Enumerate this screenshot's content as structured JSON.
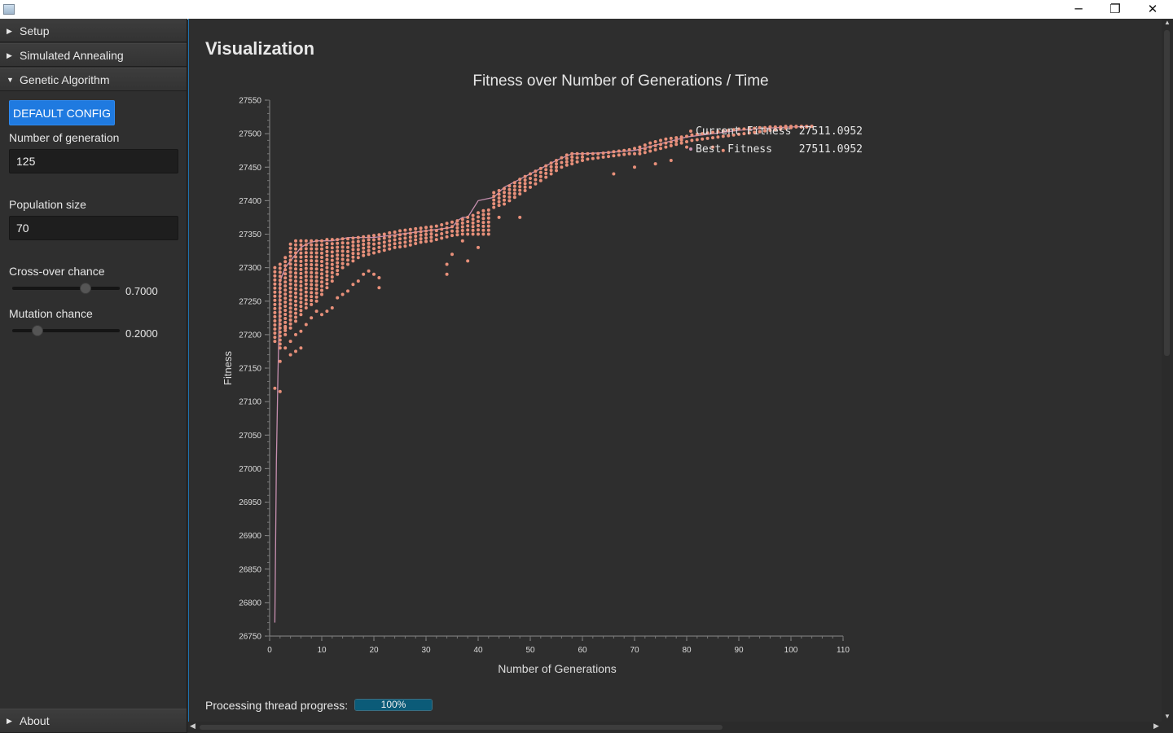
{
  "window": {
    "title": "",
    "controls": {
      "minimize": "─",
      "restore": "❐",
      "close": "✕"
    }
  },
  "sidebar": {
    "sections": [
      {
        "label": "Setup",
        "expanded": false,
        "icon": "triangle-right-icon"
      },
      {
        "label": "Simulated Annealing",
        "expanded": false,
        "icon": "triangle-right-icon"
      },
      {
        "label": "Genetic Algorithm",
        "expanded": true,
        "icon": "triangle-down-icon"
      }
    ],
    "about": {
      "label": "About",
      "expanded": false,
      "icon": "triangle-right-icon"
    },
    "genetic": {
      "default_config_label": "DEFAULT CONFIG",
      "generations_label": "Number of generation",
      "generations_value": "125",
      "population_label": "Population size",
      "population_value": "70",
      "crossover_label": "Cross-over chance",
      "crossover_value": "0.7000",
      "crossover_fraction": 0.7,
      "mutation_label": "Mutation chance",
      "mutation_value": "0.2000",
      "mutation_fraction": 0.2
    }
  },
  "main": {
    "title": "Visualization",
    "progress_label": "Processing thread progress:",
    "progress_value": "100%",
    "progress_fraction": 1.0
  },
  "colors": {
    "accent": "#1f7ae0",
    "series_current": "#e8907a",
    "series_best": "#c78fb0",
    "background": "#2e2e2e"
  },
  "chart_data": {
    "type": "scatter",
    "title": "Fitness over Number of Generations / Time",
    "xlabel": "Number of Generations",
    "ylabel": "Fitness",
    "xlim": [
      0,
      110
    ],
    "ylim": [
      26750,
      27550
    ],
    "x_ticks": [
      0,
      10,
      20,
      30,
      40,
      50,
      60,
      70,
      80,
      90,
      100,
      110
    ],
    "y_ticks": [
      26750,
      26800,
      26850,
      26900,
      26950,
      27000,
      27050,
      27100,
      27150,
      27200,
      27250,
      27300,
      27350,
      27400,
      27450,
      27500,
      27550
    ],
    "legend_position": "top-right",
    "series": [
      {
        "name": "Current Fitness",
        "legend_value": "27511.0952",
        "kind": "scatter",
        "bands": [
          {
            "x": 1,
            "min": 27190,
            "max": 27300
          },
          {
            "x": 2,
            "min": 27180,
            "max": 27305
          },
          {
            "x": 3,
            "min": 27200,
            "max": 27315
          },
          {
            "x": 4,
            "min": 27210,
            "max": 27335
          },
          {
            "x": 5,
            "min": 27220,
            "max": 27340
          },
          {
            "x": 6,
            "min": 27230,
            "max": 27340
          },
          {
            "x": 7,
            "min": 27240,
            "max": 27340
          },
          {
            "x": 8,
            "min": 27245,
            "max": 27340
          },
          {
            "x": 9,
            "min": 27250,
            "max": 27340
          },
          {
            "x": 10,
            "min": 27260,
            "max": 27340
          },
          {
            "x": 11,
            "min": 27270,
            "max": 27342
          },
          {
            "x": 12,
            "min": 27280,
            "max": 27342
          },
          {
            "x": 13,
            "min": 27290,
            "max": 27342
          },
          {
            "x": 14,
            "min": 27300,
            "max": 27343
          },
          {
            "x": 15,
            "min": 27305,
            "max": 27343
          },
          {
            "x": 16,
            "min": 27310,
            "max": 27344
          },
          {
            "x": 17,
            "min": 27315,
            "max": 27345
          },
          {
            "x": 18,
            "min": 27318,
            "max": 27346
          },
          {
            "x": 19,
            "min": 27320,
            "max": 27347
          },
          {
            "x": 20,
            "min": 27322,
            "max": 27348
          },
          {
            "x": 21,
            "min": 27324,
            "max": 27349
          },
          {
            "x": 22,
            "min": 27326,
            "max": 27350
          },
          {
            "x": 23,
            "min": 27328,
            "max": 27352
          },
          {
            "x": 24,
            "min": 27330,
            "max": 27353
          },
          {
            "x": 25,
            "min": 27331,
            "max": 27355
          },
          {
            "x": 26,
            "min": 27332,
            "max": 27356
          },
          {
            "x": 27,
            "min": 27334,
            "max": 27357
          },
          {
            "x": 28,
            "min": 27336,
            "max": 27358
          },
          {
            "x": 29,
            "min": 27338,
            "max": 27359
          },
          {
            "x": 30,
            "min": 27339,
            "max": 27360
          },
          {
            "x": 31,
            "min": 27340,
            "max": 27361
          },
          {
            "x": 32,
            "min": 27342,
            "max": 27362
          },
          {
            "x": 33,
            "min": 27344,
            "max": 27364
          },
          {
            "x": 34,
            "min": 27346,
            "max": 27366
          },
          {
            "x": 35,
            "min": 27348,
            "max": 27368
          },
          {
            "x": 36,
            "min": 27349,
            "max": 27370
          },
          {
            "x": 37,
            "min": 27350,
            "max": 27372
          },
          {
            "x": 38,
            "min": 27350,
            "max": 27375
          },
          {
            "x": 39,
            "min": 27350,
            "max": 27378
          },
          {
            "x": 40,
            "min": 27350,
            "max": 27382
          },
          {
            "x": 41,
            "min": 27350,
            "max": 27385
          },
          {
            "x": 42,
            "min": 27350,
            "max": 27386
          },
          {
            "x": 43,
            "min": 27390,
            "max": 27412
          },
          {
            "x": 44,
            "min": 27393,
            "max": 27415
          },
          {
            "x": 45,
            "min": 27395,
            "max": 27418
          },
          {
            "x": 46,
            "min": 27400,
            "max": 27422
          },
          {
            "x": 47,
            "min": 27405,
            "max": 27427
          },
          {
            "x": 48,
            "min": 27410,
            "max": 27432
          },
          {
            "x": 49,
            "min": 27415,
            "max": 27436
          },
          {
            "x": 50,
            "min": 27420,
            "max": 27440
          },
          {
            "x": 51,
            "min": 27425,
            "max": 27444
          },
          {
            "x": 52,
            "min": 27430,
            "max": 27448
          },
          {
            "x": 53,
            "min": 27435,
            "max": 27452
          },
          {
            "x": 54,
            "min": 27440,
            "max": 27456
          },
          {
            "x": 55,
            "min": 27445,
            "max": 27460
          },
          {
            "x": 56,
            "min": 27450,
            "max": 27464
          },
          {
            "x": 57,
            "min": 27453,
            "max": 27468
          },
          {
            "x": 58,
            "min": 27455,
            "max": 27470
          },
          {
            "x": 59,
            "min": 27458,
            "max": 27470
          },
          {
            "x": 60,
            "min": 27460,
            "max": 27470
          },
          {
            "x": 61,
            "min": 27462,
            "max": 27470
          },
          {
            "x": 62,
            "min": 27463,
            "max": 27470
          },
          {
            "x": 63,
            "min": 27464,
            "max": 27470
          },
          {
            "x": 64,
            "min": 27465,
            "max": 27471
          },
          {
            "x": 65,
            "min": 27466,
            "max": 27472
          },
          {
            "x": 66,
            "min": 27467,
            "max": 27473
          },
          {
            "x": 67,
            "min": 27468,
            "max": 27474
          },
          {
            "x": 68,
            "min": 27469,
            "max": 27475
          },
          {
            "x": 69,
            "min": 27470,
            "max": 27476
          },
          {
            "x": 70,
            "min": 27470,
            "max": 27478
          },
          {
            "x": 71,
            "min": 27470,
            "max": 27480
          },
          {
            "x": 72,
            "min": 27472,
            "max": 27483
          },
          {
            "x": 73,
            "min": 27474,
            "max": 27486
          },
          {
            "x": 74,
            "min": 27476,
            "max": 27488
          },
          {
            "x": 75,
            "min": 27478,
            "max": 27490
          },
          {
            "x": 76,
            "min": 27480,
            "max": 27492
          },
          {
            "x": 77,
            "min": 27482,
            "max": 27493
          },
          {
            "x": 78,
            "min": 27484,
            "max": 27494
          },
          {
            "x": 79,
            "min": 27486,
            "max": 27495
          },
          {
            "x": 80,
            "min": 27488,
            "max": 27496
          },
          {
            "x": 81,
            "min": 27490,
            "max": 27498
          },
          {
            "x": 82,
            "min": 27491,
            "max": 27499
          },
          {
            "x": 83,
            "min": 27492,
            "max": 27500
          },
          {
            "x": 84,
            "min": 27493,
            "max": 27501
          },
          {
            "x": 85,
            "min": 27494,
            "max": 27502
          },
          {
            "x": 86,
            "min": 27495,
            "max": 27503
          },
          {
            "x": 87,
            "min": 27496,
            "max": 27504
          },
          {
            "x": 88,
            "min": 27497,
            "max": 27505
          },
          {
            "x": 89,
            "min": 27498,
            "max": 27506
          },
          {
            "x": 90,
            "min": 27499,
            "max": 27507
          },
          {
            "x": 91,
            "min": 27500,
            "max": 27507
          },
          {
            "x": 92,
            "min": 27501,
            "max": 27508
          },
          {
            "x": 93,
            "min": 27502,
            "max": 27508
          },
          {
            "x": 94,
            "min": 27503,
            "max": 27509
          },
          {
            "x": 95,
            "min": 27504,
            "max": 27509
          },
          {
            "x": 96,
            "min": 27505,
            "max": 27510
          },
          {
            "x": 97,
            "min": 27506,
            "max": 27510
          },
          {
            "x": 98,
            "min": 27507,
            "max": 27510
          },
          {
            "x": 99,
            "min": 27508,
            "max": 27511
          },
          {
            "x": 100,
            "min": 27509,
            "max": 27511
          },
          {
            "x": 101,
            "min": 27510,
            "max": 27511
          },
          {
            "x": 102,
            "min": 27510,
            "max": 27511
          },
          {
            "x": 103,
            "min": 27510,
            "max": 27511
          },
          {
            "x": 104,
            "min": 27511,
            "max": 27511
          }
        ],
        "outliers": [
          [
            1,
            27120
          ],
          [
            2,
            27115
          ],
          [
            2,
            27160
          ],
          [
            3,
            27180
          ],
          [
            4,
            27170
          ],
          [
            4,
            27190
          ],
          [
            5,
            27175
          ],
          [
            6,
            27180
          ],
          [
            3,
            27210
          ],
          [
            5,
            27200
          ],
          [
            6,
            27205
          ],
          [
            7,
            27215
          ],
          [
            8,
            27225
          ],
          [
            9,
            27235
          ],
          [
            10,
            27230
          ],
          [
            11,
            27235
          ],
          [
            12,
            27240
          ],
          [
            13,
            27255
          ],
          [
            14,
            27260
          ],
          [
            15,
            27265
          ],
          [
            16,
            27275
          ],
          [
            17,
            27280
          ],
          [
            18,
            27290
          ],
          [
            19,
            27295
          ],
          [
            21,
            27285
          ],
          [
            21,
            27270
          ],
          [
            20,
            27290
          ],
          [
            34,
            27290
          ],
          [
            34,
            27305
          ],
          [
            35,
            27320
          ],
          [
            38,
            27310
          ],
          [
            37,
            27340
          ],
          [
            40,
            27330
          ],
          [
            44,
            27375
          ],
          [
            48,
            27375
          ],
          [
            66,
            27440
          ],
          [
            70,
            27450
          ],
          [
            74,
            27455
          ],
          [
            77,
            27460
          ],
          [
            80,
            27480
          ],
          [
            85,
            27480
          ],
          [
            87,
            27475
          ]
        ]
      },
      {
        "name": "Best Fitness",
        "legend_value": "27511.0952",
        "kind": "line",
        "x": [
          1,
          1.3,
          1.6,
          2,
          3,
          4,
          5,
          6,
          7,
          8,
          9,
          10,
          11,
          12,
          13,
          14,
          15,
          20,
          25,
          30,
          35,
          36,
          37,
          38,
          40,
          43,
          45,
          50,
          55,
          58,
          60,
          65,
          70,
          75,
          80,
          85,
          90,
          95,
          100,
          104
        ],
        "y": [
          26770,
          27010,
          27140,
          27280,
          27300,
          27310,
          27320,
          27330,
          27335,
          27338,
          27340,
          27340,
          27340,
          27340,
          27342,
          27343,
          27345,
          27345,
          27350,
          27355,
          27360,
          27370,
          27375,
          27375,
          27400,
          27405,
          27420,
          27440,
          27460,
          27470,
          27470,
          27472,
          27475,
          27485,
          27495,
          27500,
          27505,
          27508,
          27510,
          27511
        ]
      }
    ]
  }
}
